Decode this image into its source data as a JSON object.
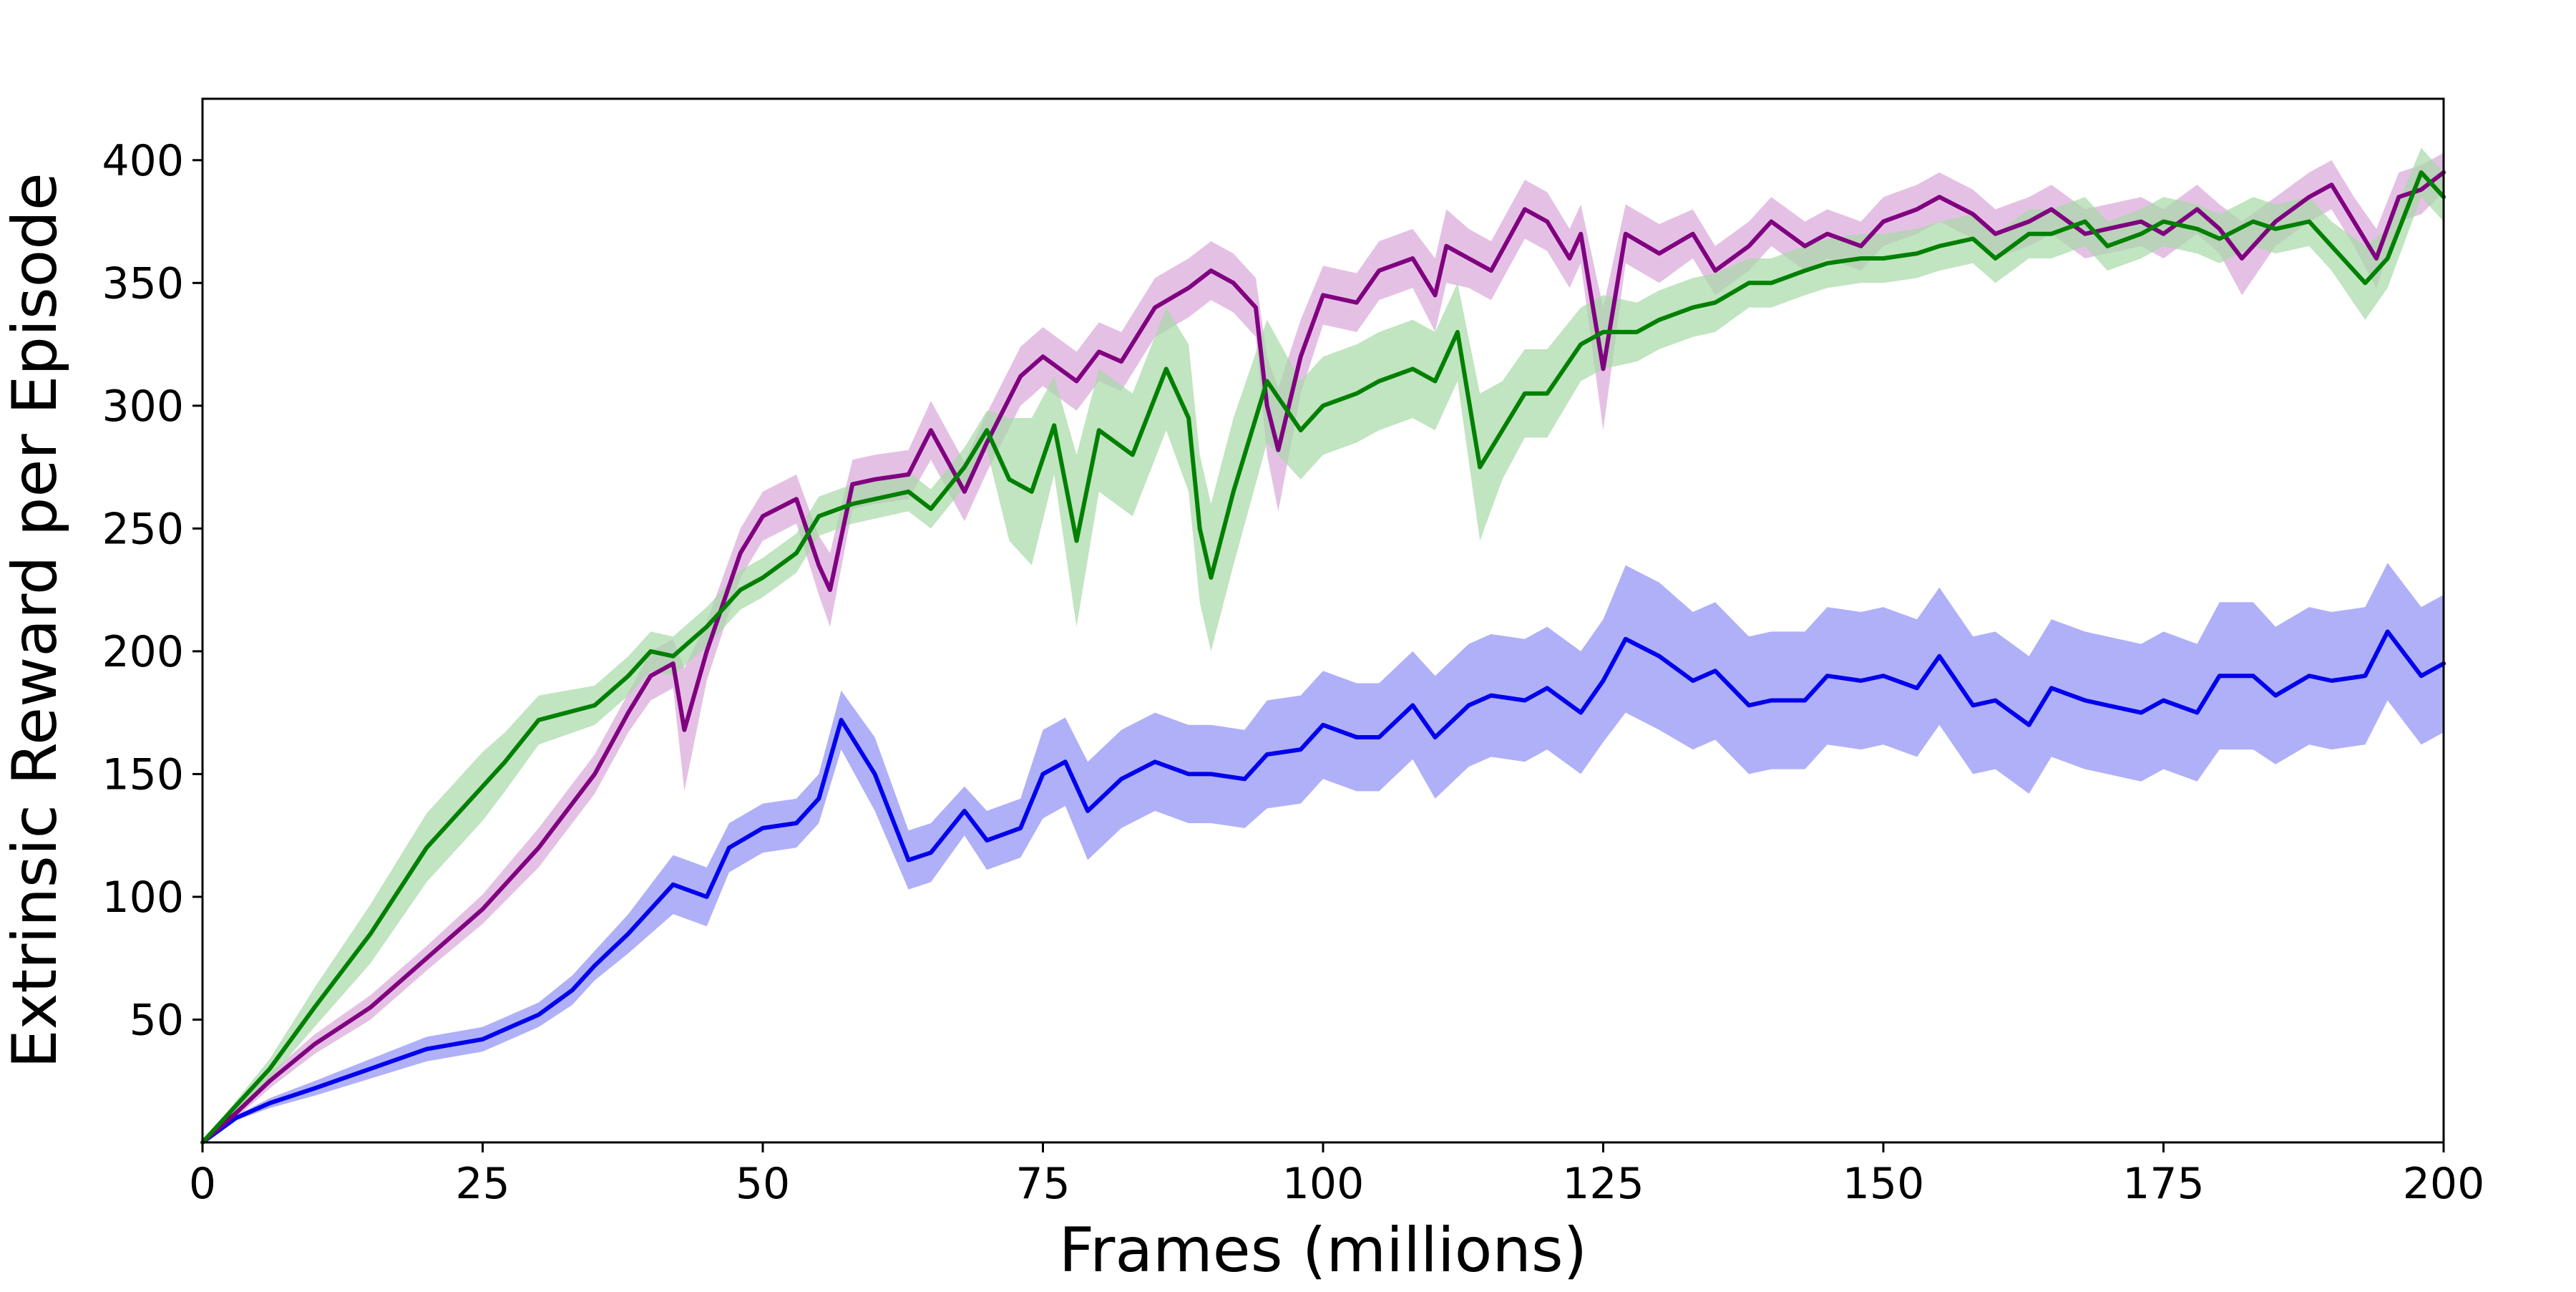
{
  "chart_data": {
    "type": "line",
    "title": "",
    "xlabel": "Frames (millions)",
    "ylabel": "Extrinsic Reward per Episode",
    "xlim": [
      0,
      200
    ],
    "ylim": [
      0,
      425
    ],
    "xticks": [
      0,
      25,
      50,
      75,
      100,
      125,
      150,
      175,
      200
    ],
    "xtick_labels": [
      "0",
      "25",
      "50",
      "75",
      "100",
      "125",
      "150",
      "175",
      "200"
    ],
    "yticks": [
      50,
      100,
      150,
      200,
      250,
      300,
      350,
      400
    ],
    "ytick_labels": [
      "50",
      "100",
      "150",
      "200",
      "250",
      "300",
      "350",
      "400"
    ],
    "grid": false,
    "legend": "none",
    "series": [
      {
        "color": "#0000ee",
        "band_color": "#8f8ff5",
        "x": [
          0,
          3,
          6,
          10,
          15,
          20,
          25,
          28,
          30,
          33,
          35,
          38,
          40,
          42,
          45,
          47,
          50,
          53,
          55,
          57,
          60,
          63,
          65,
          68,
          70,
          73,
          75,
          77,
          79,
          82,
          85,
          88,
          90,
          93,
          95,
          98,
          100,
          103,
          105,
          108,
          110,
          113,
          115,
          118,
          120,
          123,
          125,
          127,
          130,
          133,
          135,
          138,
          140,
          143,
          145,
          148,
          150,
          153,
          155,
          158,
          160,
          163,
          165,
          168,
          170,
          173,
          175,
          178,
          180,
          183,
          185,
          188,
          190,
          193,
          195,
          198,
          200
        ],
        "y": [
          0,
          10,
          16,
          22,
          30,
          38,
          42,
          48,
          52,
          62,
          72,
          85,
          95,
          105,
          100,
          120,
          128,
          130,
          140,
          172,
          150,
          115,
          118,
          135,
          123,
          128,
          150,
          155,
          135,
          148,
          155,
          150,
          150,
          148,
          158,
          160,
          170,
          165,
          165,
          178,
          165,
          178,
          182,
          180,
          185,
          175,
          188,
          205,
          198,
          188,
          192,
          178,
          180,
          180,
          190,
          188,
          190,
          185,
          198,
          178,
          180,
          170,
          185,
          180,
          178,
          175,
          180,
          175,
          190,
          190,
          182,
          190,
          188,
          190,
          208,
          190,
          195
        ],
        "band": [
          0,
          1,
          2,
          3,
          4,
          5,
          5,
          5,
          5,
          6,
          6,
          8,
          10,
          12,
          12,
          10,
          10,
          10,
          10,
          12,
          15,
          12,
          12,
          10,
          12,
          12,
          18,
          18,
          20,
          20,
          20,
          20,
          20,
          20,
          22,
          22,
          22,
          22,
          22,
          22,
          25,
          25,
          25,
          25,
          25,
          25,
          25,
          30,
          30,
          28,
          28,
          28,
          28,
          28,
          28,
          28,
          28,
          28,
          28,
          28,
          28,
          28,
          28,
          28,
          28,
          28,
          28,
          28,
          30,
          30,
          28,
          28,
          28,
          28,
          28,
          28,
          28
        ]
      },
      {
        "color": "#800080",
        "band_color": "#d9a6d9",
        "x": [
          0,
          3,
          6,
          10,
          15,
          20,
          25,
          30,
          35,
          38,
          40,
          42,
          43,
          45,
          48,
          50,
          53,
          55,
          56,
          58,
          60,
          63,
          65,
          68,
          70,
          73,
          75,
          78,
          80,
          82,
          85,
          88,
          90,
          92,
          94,
          95,
          96,
          98,
          100,
          103,
          105,
          108,
          110,
          111,
          113,
          115,
          118,
          120,
          122,
          123,
          125,
          127,
          130,
          133,
          135,
          138,
          140,
          143,
          145,
          148,
          150,
          153,
          155,
          158,
          160,
          163,
          165,
          168,
          170,
          173,
          175,
          178,
          180,
          182,
          185,
          188,
          190,
          192,
          194,
          196,
          198,
          200
        ],
        "y": [
          0,
          12,
          25,
          40,
          55,
          75,
          95,
          120,
          150,
          175,
          190,
          195,
          168,
          200,
          240,
          255,
          262,
          235,
          225,
          268,
          270,
          272,
          290,
          265,
          285,
          312,
          320,
          310,
          322,
          318,
          340,
          348,
          355,
          350,
          340,
          300,
          282,
          320,
          345,
          342,
          355,
          360,
          345,
          365,
          360,
          355,
          380,
          375,
          360,
          370,
          315,
          370,
          362,
          370,
          355,
          365,
          375,
          365,
          370,
          365,
          375,
          380,
          385,
          378,
          370,
          375,
          380,
          370,
          372,
          375,
          370,
          380,
          372,
          360,
          375,
          385,
          390,
          375,
          360,
          385,
          388,
          395
        ],
        "band": [
          0,
          2,
          3,
          4,
          5,
          5,
          6,
          8,
          8,
          8,
          10,
          10,
          25,
          12,
          10,
          10,
          10,
          12,
          15,
          10,
          10,
          10,
          12,
          12,
          12,
          12,
          12,
          12,
          12,
          12,
          12,
          12,
          12,
          12,
          12,
          20,
          25,
          15,
          12,
          12,
          12,
          12,
          15,
          15,
          12,
          12,
          12,
          12,
          12,
          12,
          25,
          12,
          12,
          10,
          10,
          10,
          10,
          10,
          10,
          10,
          10,
          10,
          10,
          10,
          10,
          10,
          10,
          10,
          10,
          10,
          10,
          10,
          10,
          15,
          10,
          10,
          10,
          10,
          12,
          10,
          10,
          8
        ]
      },
      {
        "color": "#008000",
        "band_color": "#a6d9a6",
        "x": [
          0,
          3,
          6,
          10,
          15,
          20,
          25,
          27,
          30,
          35,
          38,
          40,
          42,
          45,
          48,
          50,
          53,
          55,
          58,
          60,
          63,
          65,
          68,
          70,
          72,
          74,
          76,
          78,
          80,
          83,
          86,
          88,
          89,
          90,
          92,
          95,
          98,
          100,
          103,
          105,
          108,
          110,
          112,
          114,
          116,
          118,
          120,
          123,
          125,
          128,
          130,
          133,
          135,
          138,
          140,
          143,
          145,
          148,
          150,
          153,
          155,
          158,
          160,
          163,
          165,
          168,
          170,
          173,
          175,
          178,
          180,
          183,
          185,
          188,
          190,
          193,
          195,
          198,
          200
        ],
        "y": [
          0,
          15,
          30,
          55,
          85,
          120,
          145,
          155,
          172,
          178,
          190,
          200,
          198,
          210,
          225,
          230,
          240,
          255,
          260,
          262,
          265,
          258,
          275,
          290,
          270,
          265,
          292,
          245,
          290,
          280,
          315,
          295,
          250,
          230,
          265,
          310,
          290,
          300,
          305,
          310,
          315,
          310,
          330,
          275,
          290,
          305,
          305,
          325,
          330,
          330,
          335,
          340,
          342,
          350,
          350,
          355,
          358,
          360,
          360,
          362,
          365,
          368,
          360,
          370,
          370,
          375,
          365,
          370,
          375,
          372,
          368,
          375,
          372,
          375,
          365,
          350,
          360,
          395,
          385
        ],
        "band": [
          0,
          2,
          4,
          8,
          12,
          14,
          14,
          12,
          10,
          8,
          8,
          8,
          8,
          8,
          8,
          8,
          8,
          8,
          8,
          8,
          8,
          8,
          8,
          8,
          25,
          30,
          20,
          35,
          25,
          25,
          25,
          30,
          30,
          30,
          30,
          25,
          20,
          20,
          20,
          20,
          20,
          20,
          20,
          30,
          20,
          18,
          18,
          15,
          15,
          12,
          12,
          12,
          12,
          10,
          10,
          10,
          10,
          10,
          10,
          10,
          10,
          10,
          10,
          10,
          10,
          10,
          10,
          10,
          10,
          10,
          10,
          10,
          10,
          10,
          10,
          15,
          12,
          10,
          10
        ]
      }
    ]
  }
}
